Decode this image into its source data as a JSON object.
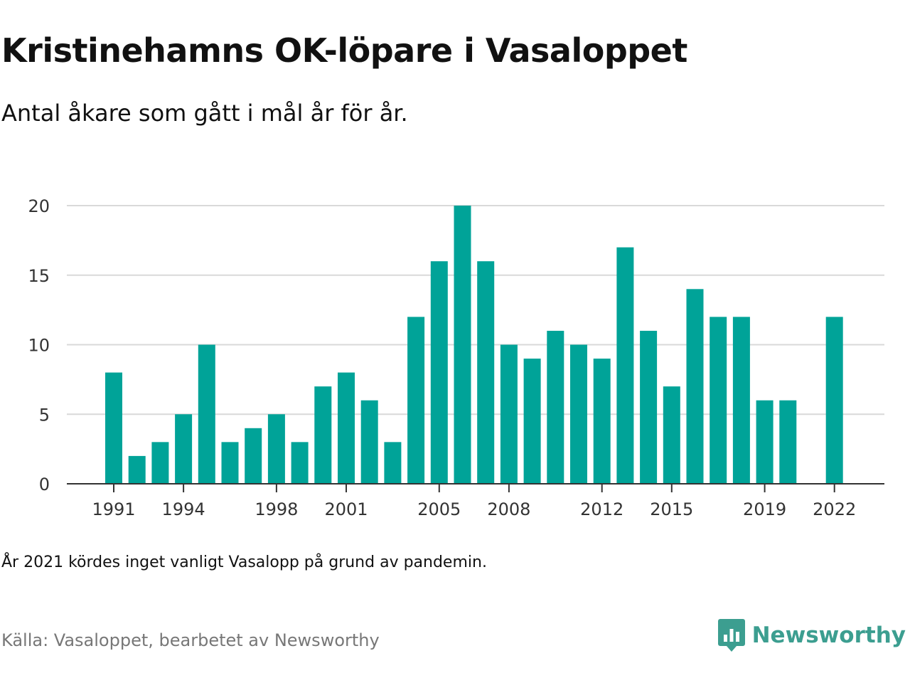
{
  "header": {
    "title": "Kristinehamns OK-löpare i Vasaloppet",
    "subtitle": "Antal åkare som gått i mål år för år."
  },
  "footer": {
    "note": "År 2021 kördes inget vanligt Vasalopp på grund av pandemin.",
    "source": "Källa: Vasaloppet, bearbetet av Newsworthy",
    "brand": "Newsworthy"
  },
  "colors": {
    "bar": "#00a398",
    "grid": "#d9d9d9",
    "axis": "#333333",
    "brand": "#3c9e90"
  },
  "chart_data": {
    "type": "bar",
    "x": [
      1991,
      1992,
      1993,
      1994,
      1995,
      1996,
      1997,
      1998,
      1999,
      2000,
      2001,
      2002,
      2003,
      2004,
      2005,
      2006,
      2007,
      2008,
      2009,
      2010,
      2011,
      2012,
      2013,
      2014,
      2015,
      2016,
      2017,
      2018,
      2019,
      2020,
      2021,
      2022
    ],
    "values": [
      8,
      2,
      3,
      5,
      10,
      3,
      4,
      5,
      3,
      7,
      8,
      6,
      3,
      12,
      16,
      20,
      16,
      10,
      9,
      11,
      10,
      9,
      17,
      11,
      7,
      14,
      12,
      12,
      6,
      6,
      null,
      12
    ],
    "x_tick_labels": [
      1991,
      1994,
      1998,
      2001,
      2005,
      2008,
      2012,
      2015,
      2019,
      2022
    ],
    "y_ticks": [
      0,
      5,
      10,
      15,
      20
    ],
    "ylim": [
      0,
      20
    ],
    "grid": true,
    "legend": "none"
  }
}
